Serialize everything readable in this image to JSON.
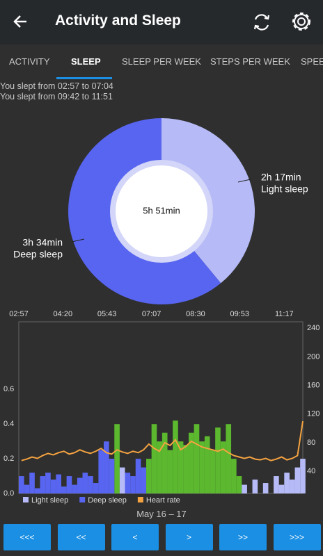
{
  "header": {
    "title": "Activity and Sleep"
  },
  "tabs": [
    "ACTIVITY",
    "SLEEP",
    "SLEEP PER WEEK",
    "STEPS PER WEEK",
    "SPEE"
  ],
  "sleep_lines": [
    "You slept from 02:57 to 07:04",
    "You slept from 09:42 to 11:51"
  ],
  "chart_data": [
    {
      "type": "pie",
      "center_label": "5h 51min",
      "categories": [
        "Light sleep",
        "Deep sleep"
      ],
      "values": [
        137,
        214
      ],
      "value_labels": [
        "2h 17min",
        "3h 34min"
      ],
      "colors": [
        "#b6bbf7",
        "#5865f0"
      ]
    },
    {
      "type": "combo",
      "xlim": [
        "02:57",
        "11:52"
      ],
      "xticks": [
        "02:57",
        "04:20",
        "05:43",
        "07:07",
        "08:30",
        "09:53",
        "11:17"
      ],
      "ylim": [
        0,
        0.99
      ],
      "yticks": [
        {
          "value": 0,
          "label": "0.0"
        },
        0.2,
        0.4,
        0.6
      ],
      "y2lim": [
        9,
        249
      ],
      "y2ticks": [
        40,
        80,
        120,
        160,
        200,
        240
      ],
      "x": [
        "02:57",
        "03:07",
        "03:17",
        "03:27",
        "03:37",
        "03:47",
        "03:57",
        "04:07",
        "04:17",
        "04:27",
        "04:37",
        "04:47",
        "04:57",
        "05:07",
        "05:17",
        "05:27",
        "05:37",
        "05:47",
        "05:57",
        "06:07",
        "06:17",
        "06:27",
        "06:37",
        "06:47",
        "06:57",
        "07:07",
        "07:17",
        "07:27",
        "07:37",
        "07:47",
        "07:57",
        "08:07",
        "08:17",
        "08:27",
        "08:37",
        "08:47",
        "08:57",
        "09:07",
        "09:17",
        "09:27",
        "09:37",
        "09:47",
        "09:57",
        "10:07",
        "10:17",
        "10:27",
        "10:37",
        "10:47",
        "10:57",
        "11:07",
        "11:17",
        "11:27",
        "11:37",
        "11:47"
      ],
      "series": [
        {
          "name": "Light sleep",
          "kind": "bar",
          "color": "#b6bbf7",
          "values": [
            0,
            0,
            0,
            0,
            0,
            0,
            0,
            0,
            0,
            0,
            0,
            0,
            0,
            0,
            0,
            0,
            0,
            0,
            0,
            0.15,
            0,
            0,
            0,
            0,
            0,
            0,
            0,
            0,
            0,
            0,
            0,
            0,
            0,
            0,
            0,
            0,
            0,
            0,
            0,
            0,
            0,
            0,
            0.05,
            0,
            0.08,
            0,
            0.06,
            0,
            0.1,
            0.05,
            0.12,
            0.08,
            0.15,
            0.2
          ]
        },
        {
          "name": "Deep sleep",
          "kind": "bar",
          "color": "#5865f0",
          "values": [
            0.1,
            0.05,
            0.12,
            0.03,
            0.1,
            0.12,
            0.08,
            0.11,
            0.04,
            0.1,
            0.05,
            0.09,
            0.12,
            0.1,
            0.06,
            0.25,
            0.3,
            0.2,
            0,
            0,
            0.12,
            0.1,
            0.2,
            0.15,
            0,
            0,
            0,
            0,
            0,
            0,
            0,
            0,
            0,
            0,
            0,
            0,
            0,
            0,
            0,
            0,
            0,
            0,
            0,
            0,
            0,
            0,
            0,
            0,
            0,
            0,
            0,
            0,
            0,
            0
          ]
        },
        {
          "name": "Heart rate",
          "kind": "line",
          "axis": "y2",
          "color": "#f5a340",
          "values": [
            55,
            57,
            60,
            58,
            62,
            65,
            63,
            66,
            68,
            64,
            66,
            70,
            67,
            65,
            68,
            72,
            66,
            64,
            70,
            67,
            65,
            68,
            66,
            70,
            78,
            72,
            68,
            80,
            76,
            84,
            70,
            75,
            82,
            78,
            74,
            72,
            70,
            68,
            71,
            66,
            62,
            60,
            58,
            60,
            57,
            56,
            58,
            55,
            57,
            60,
            56,
            58,
            62,
            110
          ]
        },
        {
          "kind": "bar",
          "color": "#5cb82e",
          "values": [
            0,
            0,
            0,
            0,
            0,
            0,
            0,
            0,
            0,
            0,
            0,
            0,
            0,
            0,
            0,
            0,
            0,
            0,
            0.4,
            0.1,
            0,
            0,
            0,
            0,
            0.2,
            0.4,
            0.3,
            0.35,
            0.25,
            0.42,
            0.3,
            0.28,
            0.35,
            0.4,
            0.3,
            0.33,
            0.25,
            0.38,
            0.3,
            0.4,
            0.2,
            0.1,
            0,
            0,
            0,
            0,
            0,
            0,
            0,
            0,
            0,
            0,
            0,
            0
          ]
        }
      ]
    }
  ],
  "date_label": "May 16 – 17",
  "buttons": [
    "<<<",
    "<<",
    "<",
    ">",
    ">>",
    ">>>"
  ]
}
